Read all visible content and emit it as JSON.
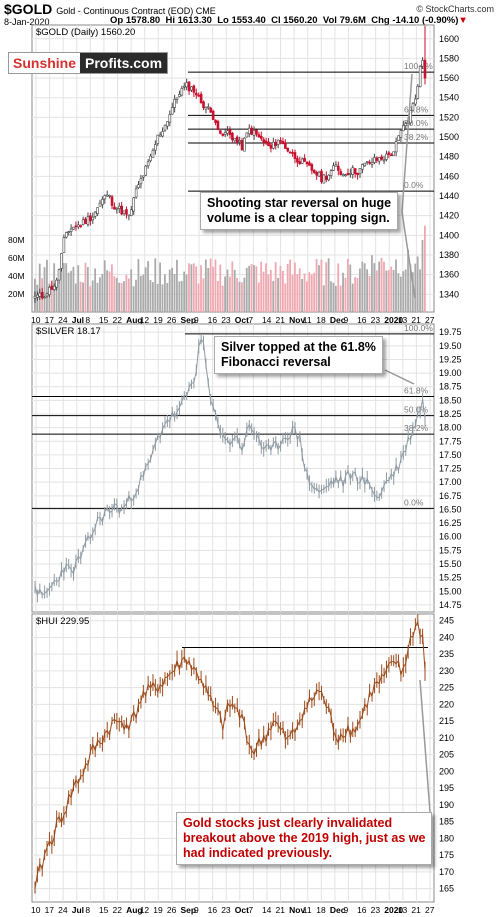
{
  "header": {
    "symbol": "$GOLD",
    "subtitle": "Gold - Continuous Contract (EOD)  CME",
    "date": "8-Jan-2020",
    "op": "Op 1578.80",
    "hi": "Hi 1613.30",
    "lo": "Lo 1553.40",
    "cl": "Cl 1560.20",
    "vol": "Vol 79.6M",
    "chg": "Chg -14.10 (-0.90%)",
    "credit": "© StockCharts.com"
  },
  "logo": {
    "part1": "Sunshine",
    "part2": "Profits.com"
  },
  "colors": {
    "up": "#999999",
    "down": "#c8102e",
    "vol_up": "#aaaaaa",
    "vol_down": "#f0a8b0",
    "silver": "#8e9aa3",
    "hui": "#9b4a1a",
    "grid": "#e3e3e3"
  },
  "annotations": {
    "gold": [
      "Shooting star reversal on huge",
      "volume is a clear topping sign."
    ],
    "silver": [
      "Silver topped at the 61.8%",
      "Fibonacci reversal"
    ],
    "hui": [
      "Gold stocks just clearly invalidated",
      "breakout above the 2019 high, just as we",
      "had indicated previously."
    ]
  },
  "chart_data": [
    {
      "type": "candlestick",
      "title": "$GOLD (Daily) 1560.20",
      "y_ticks": [
        1340,
        1360,
        1380,
        1400,
        1420,
        1440,
        1460,
        1480,
        1500,
        1520,
        1540,
        1560,
        1580,
        1600
      ],
      "ylim": [
        1322,
        1614
      ],
      "volume_ticks": [
        "20M",
        "40M",
        "60M",
        "80M"
      ],
      "volume_max": 100,
      "x_tick_labels": [
        "10",
        "17",
        "24",
        "Jul",
        "8",
        "15",
        "22",
        "Aug",
        "12",
        "19",
        "26",
        "Sep",
        "9",
        "16",
        "23",
        "Oct",
        "7",
        "14",
        "21",
        "Nov",
        "11",
        "18",
        "Dec",
        "9",
        "16",
        "23",
        "2020",
        "13",
        "21",
        "27"
      ],
      "fib_levels": [
        {
          "label": "100.0%",
          "value": 1566
        },
        {
          "label": "61.8%",
          "value": 1522
        },
        {
          "label": "50.0%",
          "value": 1508
        },
        {
          "label": "38.2%",
          "value": 1494
        },
        {
          "label": "0.0%",
          "value": 1445
        }
      ],
      "anchors": [
        [
          0,
          1338
        ],
        [
          3,
          1338
        ],
        [
          6,
          1345
        ],
        [
          9,
          1352
        ],
        [
          12,
          1395
        ],
        [
          15,
          1408
        ],
        [
          18,
          1410
        ],
        [
          21,
          1415
        ],
        [
          24,
          1420
        ],
        [
          27,
          1432
        ],
        [
          30,
          1442
        ],
        [
          33,
          1430
        ],
        [
          36,
          1425
        ],
        [
          39,
          1418
        ],
        [
          42,
          1445
        ],
        [
          45,
          1462
        ],
        [
          48,
          1478
        ],
        [
          51,
          1500
        ],
        [
          54,
          1512
        ],
        [
          57,
          1530
        ],
        [
          60,
          1546
        ],
        [
          63,
          1552
        ],
        [
          66,
          1548
        ],
        [
          69,
          1536
        ],
        [
          72,
          1528
        ],
        [
          75,
          1518
        ],
        [
          77,
          1500
        ],
        [
          80,
          1505
        ],
        [
          83,
          1498
        ],
        [
          86,
          1490
        ],
        [
          89,
          1508
        ],
        [
          92,
          1502
        ],
        [
          95,
          1495
        ],
        [
          98,
          1488
        ],
        [
          101,
          1498
        ],
        [
          104,
          1490
        ],
        [
          107,
          1482
        ],
        [
          110,
          1476
        ],
        [
          113,
          1470
        ],
        [
          116,
          1465
        ],
        [
          119,
          1458
        ],
        [
          122,
          1462
        ],
        [
          125,
          1470
        ],
        [
          128,
          1462
        ],
        [
          131,
          1466
        ],
        [
          134,
          1465
        ],
        [
          137,
          1472
        ],
        [
          140,
          1475
        ],
        [
          143,
          1478
        ],
        [
          146,
          1480
        ],
        [
          149,
          1486
        ],
        [
          152,
          1505
        ],
        [
          155,
          1518
        ],
        [
          158,
          1540
        ],
        [
          160,
          1570
        ],
        [
          161,
          1578
        ],
        [
          162,
          1560
        ]
      ],
      "n_bars": 163
    },
    {
      "type": "line",
      "title": "$SILVER 18.17",
      "y_ticks": [
        14.75,
        15.0,
        15.25,
        15.5,
        15.75,
        16.0,
        16.25,
        16.5,
        16.75,
        17.0,
        17.25,
        17.5,
        17.75,
        18.0,
        18.25,
        18.5,
        18.75,
        19.0,
        19.25,
        19.5,
        19.75
      ],
      "ylim": [
        14.62,
        19.9
      ],
      "x_tick_labels": [],
      "fib_levels": [
        {
          "label": "100.0%",
          "value": 19.72
        },
        {
          "label": "61.8%",
          "value": 18.57
        },
        {
          "label": "50.0%",
          "value": 18.22
        },
        {
          "label": "38.2%",
          "value": 17.88
        },
        {
          "label": "0.0%",
          "value": 16.52
        }
      ],
      "anchors": [
        [
          0,
          15.1
        ],
        [
          3,
          14.85
        ],
        [
          6,
          15.05
        ],
        [
          9,
          15.2
        ],
        [
          12,
          15.45
        ],
        [
          15,
          15.35
        ],
        [
          18,
          15.55
        ],
        [
          21,
          15.8
        ],
        [
          24,
          16.1
        ],
        [
          27,
          16.35
        ],
        [
          30,
          16.45
        ],
        [
          33,
          16.55
        ],
        [
          36,
          16.5
        ],
        [
          39,
          16.65
        ],
        [
          42,
          16.9
        ],
        [
          45,
          17.1
        ],
        [
          48,
          17.4
        ],
        [
          51,
          17.8
        ],
        [
          54,
          18.1
        ],
        [
          57,
          18.2
        ],
        [
          60,
          18.3
        ],
        [
          63,
          18.6
        ],
        [
          66,
          18.9
        ],
        [
          69,
          19.6
        ],
        [
          70,
          19.55
        ],
        [
          72,
          18.7
        ],
        [
          74,
          18.3
        ],
        [
          77,
          18.0
        ],
        [
          80,
          17.7
        ],
        [
          83,
          17.85
        ],
        [
          86,
          17.65
        ],
        [
          89,
          18.0
        ],
        [
          92,
          17.9
        ],
        [
          95,
          17.6
        ],
        [
          98,
          17.55
        ],
        [
          101,
          17.7
        ],
        [
          104,
          17.85
        ],
        [
          107,
          17.95
        ],
        [
          110,
          17.8
        ],
        [
          113,
          17.1
        ],
        [
          116,
          16.9
        ],
        [
          119,
          16.8
        ],
        [
          122,
          16.95
        ],
        [
          125,
          17.05
        ],
        [
          128,
          17.0
        ],
        [
          131,
          17.15
        ],
        [
          134,
          17.1
        ],
        [
          137,
          17.0
        ],
        [
          140,
          16.9
        ],
        [
          143,
          16.7
        ],
        [
          146,
          17.05
        ],
        [
          149,
          17.15
        ],
        [
          152,
          17.4
        ],
        [
          155,
          17.75
        ],
        [
          158,
          18.1
        ],
        [
          160,
          18.35
        ],
        [
          161,
          18.55
        ],
        [
          162,
          18.17
        ]
      ]
    },
    {
      "type": "line",
      "title": "$HUI 229.95",
      "y_ticks": [
        165,
        170,
        175,
        180,
        185,
        190,
        195,
        200,
        205,
        210,
        215,
        220,
        225,
        230,
        235,
        240,
        245
      ],
      "ylim": [
        161,
        247
      ],
      "x_tick_labels": [
        "10",
        "17",
        "24",
        "Jul",
        "8",
        "15",
        "22",
        "Aug",
        "12",
        "19",
        "26",
        "Sep",
        "9",
        "16",
        "23",
        "Oct",
        "7",
        "14",
        "21",
        "Nov",
        "11",
        "18",
        "Dec",
        "9",
        "16",
        "23",
        "2020",
        "13",
        "21",
        "27"
      ],
      "resistance": 237,
      "anchors": [
        [
          0,
          165
        ],
        [
          4,
          175
        ],
        [
          8,
          182
        ],
        [
          12,
          188
        ],
        [
          16,
          195
        ],
        [
          20,
          200
        ],
        [
          24,
          206
        ],
        [
          28,
          210
        ],
        [
          32,
          214
        ],
        [
          36,
          215
        ],
        [
          40,
          214
        ],
        [
          44,
          222
        ],
        [
          48,
          224
        ],
        [
          52,
          226
        ],
        [
          56,
          229
        ],
        [
          60,
          232
        ],
        [
          63,
          234
        ],
        [
          66,
          230
        ],
        [
          69,
          228
        ],
        [
          72,
          222
        ],
        [
          75,
          218
        ],
        [
          78,
          214
        ],
        [
          81,
          220
        ],
        [
          84,
          218
        ],
        [
          87,
          214
        ],
        [
          90,
          206
        ],
        [
          93,
          208
        ],
        [
          96,
          211
        ],
        [
          99,
          215
        ],
        [
          102,
          212
        ],
        [
          105,
          209
        ],
        [
          108,
          212
        ],
        [
          111,
          218
        ],
        [
          114,
          220
        ],
        [
          117,
          224
        ],
        [
          120,
          222
        ],
        [
          123,
          215
        ],
        [
          126,
          210
        ],
        [
          129,
          213
        ],
        [
          132,
          212
        ],
        [
          135,
          215
        ],
        [
          138,
          221
        ],
        [
          141,
          225
        ],
        [
          144,
          227
        ],
        [
          147,
          230
        ],
        [
          150,
          233
        ],
        [
          152,
          229
        ],
        [
          155,
          236
        ],
        [
          157,
          242
        ],
        [
          159,
          244
        ],
        [
          161,
          240
        ],
        [
          162,
          230
        ]
      ]
    }
  ]
}
